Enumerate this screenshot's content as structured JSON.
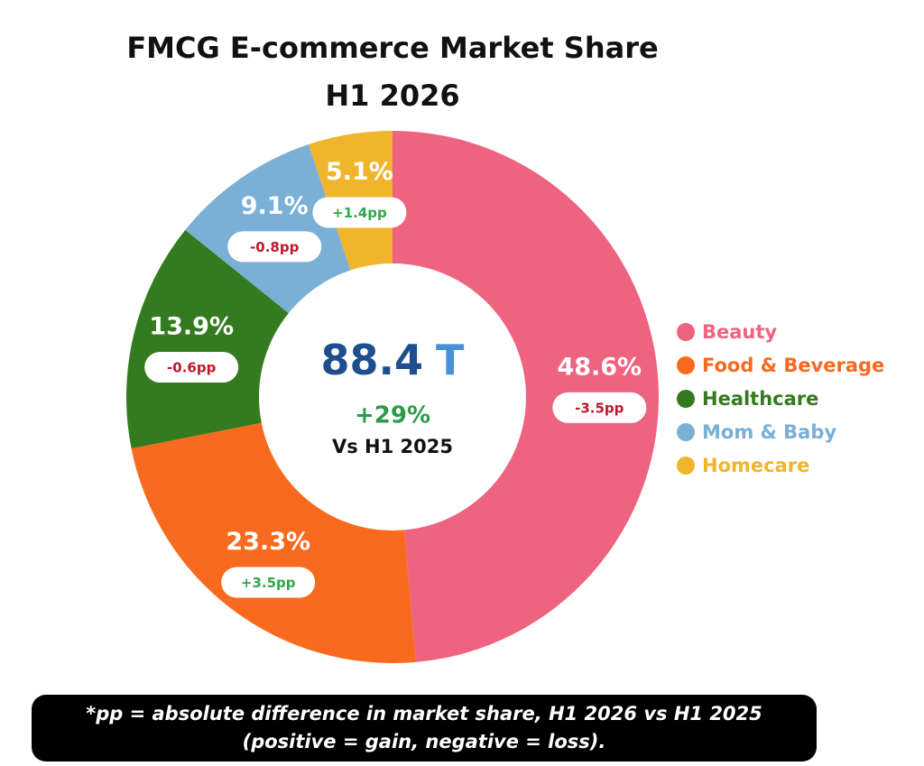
{
  "chart_data": {
    "type": "pie",
    "donut": true,
    "title": "FMCG E-commerce Market Share",
    "subtitle": "H1 2026",
    "categories": [
      "Beauty",
      "Food & Beverage",
      "Healthcare",
      "Mom & Baby",
      "Homecare"
    ],
    "values": [
      48.6,
      23.3,
      13.9,
      9.1,
      5.1
    ],
    "value_labels": [
      "48.6%",
      "23.3%",
      "13.9%",
      "9.1%",
      "5.1%"
    ],
    "changes": [
      -3.5,
      3.5,
      -0.6,
      -0.8,
      1.4
    ],
    "change_labels": [
      "-3.5pp",
      "+3.5pp",
      "-0.6pp",
      "-0.8pp",
      "+1.4pp"
    ],
    "colors": [
      "#ee6380",
      "#f86a1e",
      "#347a1e",
      "#7aafd6",
      "#f0b52c"
    ],
    "legend": "right",
    "center": {
      "value": "88.4",
      "unit": "T",
      "change": "+29%",
      "comparison": "Vs H1 2025"
    },
    "footnote": [
      "*pp = absolute difference in market share, H1 2026 vs H1 2025",
      "(positive = gain, negative = loss)."
    ]
  }
}
